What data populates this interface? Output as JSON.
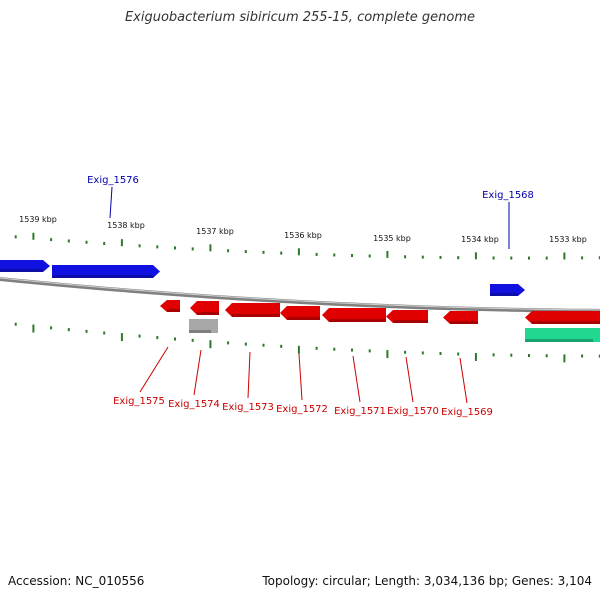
{
  "title": "Exiguobacterium sibiricum 255-15, complete genome",
  "footer": {
    "accession": "Accession: NC_010556",
    "topology": "Topology: circular; Length: 3,034,136 bp; Genes: 3,104"
  },
  "colors": {
    "forward_gene": "#1010e0",
    "reverse_gene": "#e00000",
    "rna_gene": "#a8a8a8",
    "feature": "#20d890",
    "backbone": "#808080",
    "tick": "#2a7a2a",
    "forward_label": "#0000aa",
    "reverse_label": "#cc0000"
  },
  "ticks": [
    {
      "label": "1539 kbp"
    },
    {
      "label": "1538 kbp"
    },
    {
      "label": "1537 kbp"
    },
    {
      "label": "1536 kbp"
    },
    {
      "label": "1535 kbp"
    },
    {
      "label": "1534 kbp"
    },
    {
      "label": "1533 kbp"
    }
  ],
  "gene_labels": {
    "forward": [
      "Exig_1576",
      "Exig_1568"
    ],
    "reverse": [
      "Exig_1575",
      "Exig_1574",
      "Exig_1573",
      "Exig_1572",
      "Exig_1571",
      "Exig_1570",
      "Exig_1569"
    ]
  }
}
